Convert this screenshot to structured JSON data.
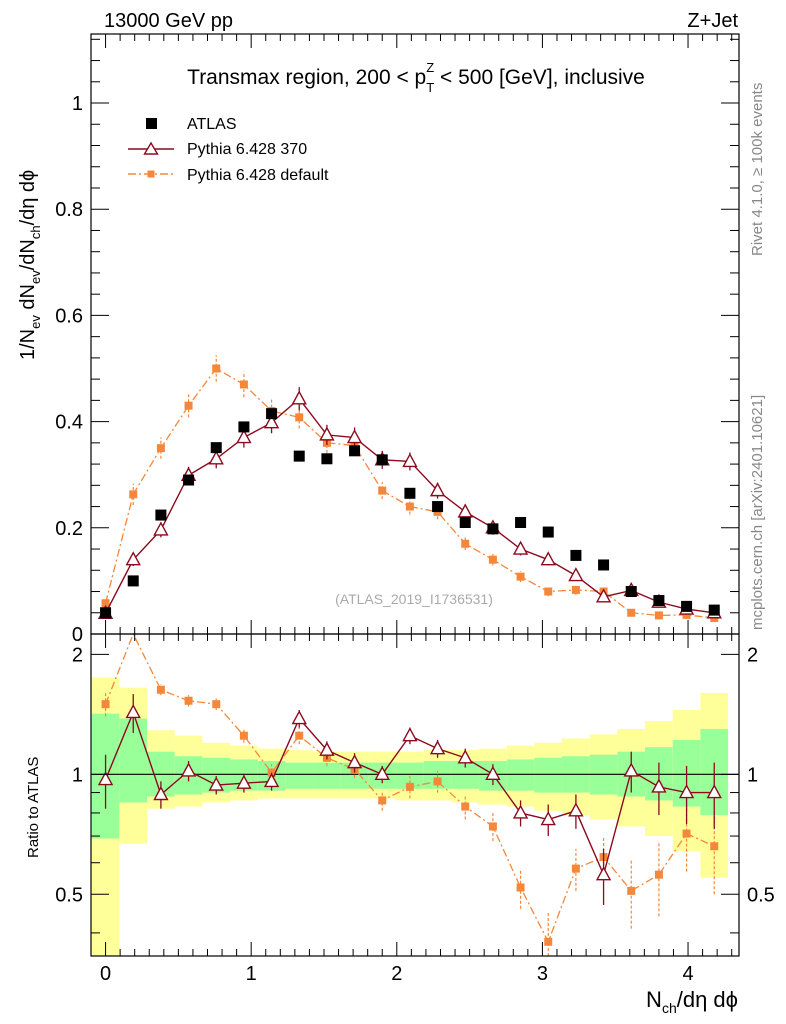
{
  "header": {
    "left": "13000 GeV pp",
    "right": "Z+Jet"
  },
  "side": {
    "rivet": "Rivet 4.1.0, ≥ 100k events",
    "mcplots": "mcplots.cern.ch [arXiv:2401.10621]"
  },
  "colors": {
    "atlas": "#000000",
    "p370": "#8b0a1e",
    "pdef": "#f5873a",
    "band_inner": "#99ff99",
    "band_outer": "#ffff99"
  },
  "chart_data": {
    "type": "scatter",
    "title": "Transmax region, 200 < p",
    "title_sub": "T",
    "title_sup": "Z",
    "title_end": " < 500 [GeV], inclusive",
    "ylabel": "1/N",
    "ylabel_parts": [
      "ev",
      " dN",
      "ev",
      "/dN",
      "ch",
      "/dη dϕ"
    ],
    "xlabel_main": "N",
    "xlabel_sub": "ch",
    "xlabel_end": "/dη dϕ",
    "ratio_ylabel": "Ratio to ATLAS",
    "watermark": "(ATLAS_2019_I1736531)",
    "xlim": [
      -0.1,
      4.35
    ],
    "ylim": [
      0,
      1.13
    ],
    "ratio_ylim": [
      0.35,
      2.25
    ],
    "x_ticks": [
      0,
      1,
      2,
      3,
      4
    ],
    "y_ticks": [
      0,
      0.2,
      0.4,
      0.6,
      0.8,
      1
    ],
    "y_tick_labels": [
      "0",
      "0.2",
      "0.4",
      "0.6",
      "0.8",
      "1"
    ],
    "ratio_ticks": [
      0.5,
      1,
      2
    ],
    "ratio_tick_labels": [
      "0.5",
      "1",
      "2"
    ],
    "x": [
      0.0,
      0.19,
      0.38,
      0.57,
      0.76,
      0.95,
      1.14,
      1.33,
      1.52,
      1.71,
      1.9,
      2.09,
      2.28,
      2.47,
      2.66,
      2.85,
      3.04,
      3.23,
      3.42,
      3.61,
      3.8,
      3.99,
      4.18
    ],
    "x_lo": [
      -0.095,
      0.095,
      0.285,
      0.475,
      0.665,
      0.855,
      1.045,
      1.235,
      1.425,
      1.615,
      1.805,
      1.995,
      2.185,
      2.375,
      2.565,
      2.755,
      2.945,
      3.135,
      3.325,
      3.515,
      3.705,
      3.895,
      4.085
    ],
    "x_hi": [
      0.095,
      0.285,
      0.475,
      0.665,
      0.855,
      1.045,
      1.235,
      1.425,
      1.615,
      1.805,
      1.995,
      2.185,
      2.375,
      2.565,
      2.755,
      2.945,
      3.135,
      3.325,
      3.515,
      3.705,
      3.895,
      4.085,
      4.275
    ],
    "band_inner": [
      [
        0.69,
        1.42
      ],
      [
        0.85,
        1.38
      ],
      [
        0.88,
        1.14
      ],
      [
        0.89,
        1.11
      ],
      [
        0.9,
        1.1
      ],
      [
        0.91,
        1.09
      ],
      [
        0.91,
        1.08
      ],
      [
        0.92,
        1.07
      ],
      [
        0.92,
        1.07
      ],
      [
        0.92,
        1.07
      ],
      [
        0.92,
        1.07
      ],
      [
        0.92,
        1.07
      ],
      [
        0.92,
        1.08
      ],
      [
        0.92,
        1.08
      ],
      [
        0.91,
        1.08
      ],
      [
        0.91,
        1.09
      ],
      [
        0.9,
        1.1
      ],
      [
        0.9,
        1.11
      ],
      [
        0.89,
        1.12
      ],
      [
        0.88,
        1.14
      ],
      [
        0.86,
        1.17
      ],
      [
        0.83,
        1.22
      ],
      [
        0.79,
        1.3
      ]
    ],
    "band_outer": [
      [
        0.3,
        1.75
      ],
      [
        0.67,
        1.65
      ],
      [
        0.82,
        1.29
      ],
      [
        0.83,
        1.25
      ],
      [
        0.85,
        1.2
      ],
      [
        0.86,
        1.18
      ],
      [
        0.87,
        1.16
      ],
      [
        0.87,
        1.15
      ],
      [
        0.87,
        1.14
      ],
      [
        0.87,
        1.14
      ],
      [
        0.87,
        1.14
      ],
      [
        0.86,
        1.14
      ],
      [
        0.86,
        1.15
      ],
      [
        0.85,
        1.15
      ],
      [
        0.84,
        1.16
      ],
      [
        0.83,
        1.18
      ],
      [
        0.81,
        1.2
      ],
      [
        0.79,
        1.23
      ],
      [
        0.77,
        1.26
      ],
      [
        0.74,
        1.3
      ],
      [
        0.7,
        1.36
      ],
      [
        0.64,
        1.45
      ],
      [
        0.55,
        1.6
      ]
    ],
    "series": [
      {
        "name": "ATLAS",
        "marker": "square",
        "values": [
          0.04,
          0.1,
          0.224,
          0.29,
          0.351,
          0.39,
          0.415,
          0.335,
          0.33,
          0.345,
          0.328,
          0.265,
          0.24,
          0.21,
          0.198,
          0.21,
          0.192,
          0.148,
          0.13,
          0.08,
          0.063,
          0.052,
          0.045
        ],
        "errors": [
          0.002,
          0.003,
          0.004,
          0.004,
          0.005,
          0.005,
          0.005,
          0.004,
          0.004,
          0.004,
          0.004,
          0.004,
          0.003,
          0.003,
          0.003,
          0.003,
          0.003,
          0.003,
          0.002,
          0.002,
          0.002,
          0.002,
          0.002
        ]
      },
      {
        "name": "Pythia 6.428 370",
        "marker": "triangle",
        "values": [
          0.039,
          0.14,
          0.196,
          0.299,
          0.33,
          0.37,
          0.398,
          0.443,
          0.375,
          0.37,
          0.328,
          0.325,
          0.27,
          0.23,
          0.2,
          0.16,
          0.14,
          0.11,
          0.07,
          0.082,
          0.06,
          0.047,
          0.04
        ],
        "errors": [
          0.006,
          0.012,
          0.014,
          0.016,
          0.018,
          0.019,
          0.02,
          0.022,
          0.019,
          0.019,
          0.017,
          0.017,
          0.015,
          0.014,
          0.013,
          0.012,
          0.011,
          0.01,
          0.009,
          0.01,
          0.009,
          0.008,
          0.007
        ],
        "ratio": [
          0.97,
          1.43,
          0.89,
          1.02,
          0.94,
          0.95,
          0.96,
          1.38,
          1.15,
          1.07,
          1.0,
          1.25,
          1.16,
          1.1,
          1.0,
          0.8,
          0.77,
          0.81,
          0.56,
          1.02,
          0.93,
          0.9,
          0.9
        ],
        "ratio_err": [
          0.15,
          0.16,
          0.07,
          0.06,
          0.05,
          0.05,
          0.05,
          0.07,
          0.06,
          0.06,
          0.05,
          0.06,
          0.06,
          0.06,
          0.06,
          0.06,
          0.07,
          0.08,
          0.09,
          0.12,
          0.14,
          0.15,
          0.17
        ]
      },
      {
        "name": "Pythia 6.428 default",
        "marker": "small-square",
        "values": [
          0.058,
          0.263,
          0.35,
          0.43,
          0.5,
          0.47,
          0.42,
          0.408,
          0.36,
          0.355,
          0.27,
          0.24,
          0.23,
          0.17,
          0.14,
          0.108,
          0.08,
          0.083,
          0.08,
          0.04,
          0.035,
          0.036,
          0.03
        ],
        "errors": [
          0.008,
          0.02,
          0.02,
          0.022,
          0.025,
          0.024,
          0.022,
          0.021,
          0.019,
          0.019,
          0.016,
          0.015,
          0.014,
          0.012,
          0.011,
          0.01,
          0.009,
          0.009,
          0.009,
          0.007,
          0.007,
          0.007,
          0.006
        ],
        "ratio": [
          1.5,
          2.45,
          1.63,
          1.53,
          1.5,
          1.25,
          1.01,
          1.25,
          1.1,
          1.03,
          0.86,
          0.93,
          0.96,
          0.83,
          0.74,
          0.52,
          0.38,
          0.58,
          0.62,
          0.51,
          0.56,
          0.71,
          0.66
        ],
        "ratio_err": [
          0.1,
          0.12,
          0.05,
          0.05,
          0.05,
          0.05,
          0.05,
          0.06,
          0.05,
          0.05,
          0.05,
          0.06,
          0.06,
          0.06,
          0.06,
          0.06,
          0.07,
          0.07,
          0.08,
          0.1,
          0.12,
          0.14,
          0.16
        ]
      }
    ]
  }
}
